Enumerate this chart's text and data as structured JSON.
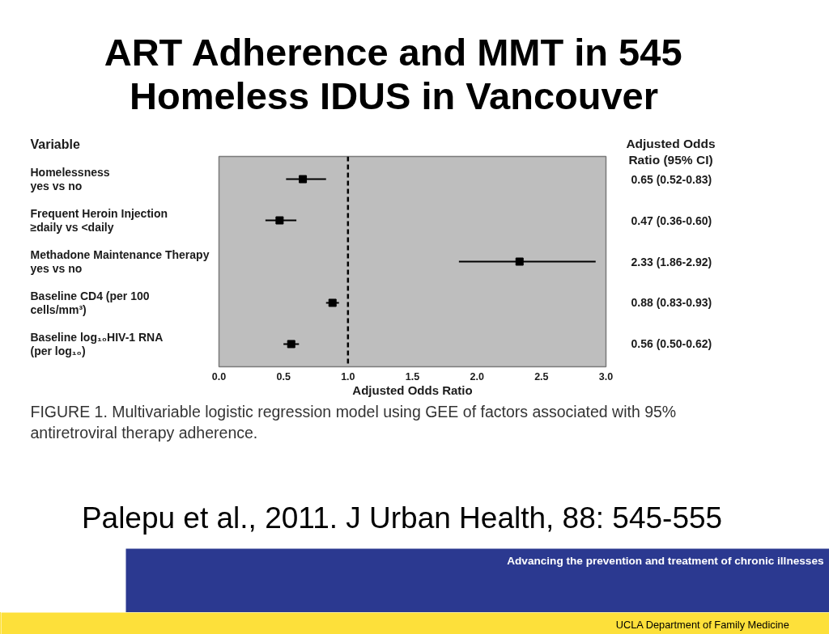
{
  "chart_data": {
    "type": "scatter",
    "orientation": "horizontal",
    "title": "ART Adherence and MMT in 545 Homeless IDUS in Vancouver",
    "xlabel": "Adjusted Odds Ratio",
    "ylabel": "Variable",
    "categories": [
      "Homelessness\nyes vs no",
      "Frequent Heroin Injection\n≥daily vs <daily",
      "Methadone Maintenance Therapy\nyes vs no",
      "Baseline CD4 (per 100\ncells/mm³)",
      "Baseline log₁₀HIV-1 RNA\n(per log₁₀)"
    ],
    "values": [
      0.65,
      0.47,
      2.33,
      0.88,
      0.56
    ],
    "errors": [
      [
        0.52,
        0.83
      ],
      [
        0.36,
        0.6
      ],
      [
        1.86,
        2.92
      ],
      [
        0.83,
        0.93
      ],
      [
        0.5,
        0.62
      ]
    ],
    "value_labels": [
      "0.65 (0.52-0.83)",
      "0.47 (0.36-0.60)",
      "2.33 (1.86-2.92)",
      "0.88 (0.83-0.93)",
      "0.56 (0.50-0.62)"
    ],
    "color": "#000000",
    "marker": "square",
    "xlim": [
      0,
      3
    ],
    "xticks": [
      {
        "value": 0,
        "label": "0.0"
      },
      {
        "value": 0.5,
        "label": "0.5"
      },
      {
        "value": 1,
        "label": "1.0"
      },
      {
        "value": 1.5,
        "label": "1.5"
      },
      {
        "value": 2,
        "label": "2.0"
      },
      {
        "value": 2.5,
        "label": "2.5"
      },
      {
        "value": 3,
        "label": "3.0"
      }
    ],
    "ref_lines": [
      {
        "axis": "x",
        "value": 1,
        "line_style": "dashed",
        "color": "#000000"
      }
    ],
    "annotations": [
      "Adjusted Odds Ratio (95% CI)",
      "FIGURE 1. Multivariable logistic regression model using GEE of factors associated with 95% antiretroviral therapy adherence.",
      "Palepu et al., 2011. J Urban Health, 88: 545-555",
      "Advancing the prevention and treatment of chronic illnesses",
      "UCLA Department of Family Medicine"
    ]
  }
}
